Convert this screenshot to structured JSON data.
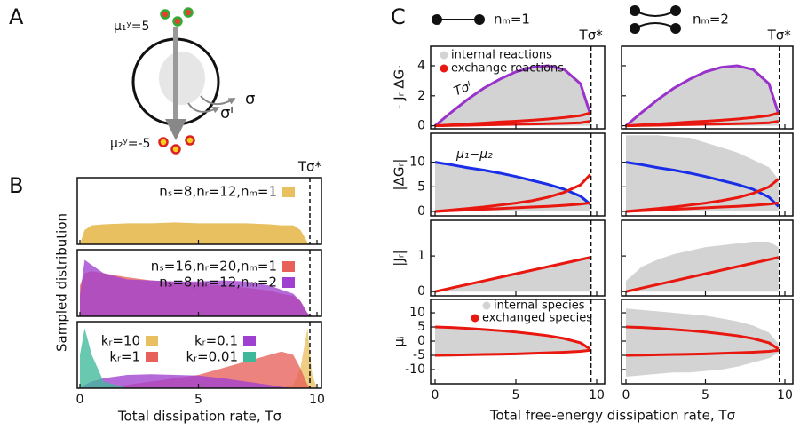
{
  "labels": [
    "A",
    "B",
    "C"
  ],
  "diagram": {
    "top": "μ₁ʸ=5",
    "bottom": "μ₂ʸ=-5",
    "sigma": "σ",
    "sigma_i": "σᴵ"
  },
  "panel_b": {
    "ylabel": "Sampled distribution",
    "xlabel": "Total dissipation rate, Tσ"
  },
  "panel_c": {
    "xlabel": "Total free-energy dissipation rate, Tσ",
    "headers": [
      "nₘ=1",
      "nₘ=2"
    ]
  },
  "chart_data": [
    {
      "type": "area",
      "x": [
        0,
        0.2,
        0.5,
        1,
        2,
        3,
        4,
        5,
        6,
        7,
        8,
        8.5,
        9,
        9.3,
        9.6,
        9.8,
        10
      ],
      "xlim": [
        0,
        10
      ],
      "ylim": [
        0,
        0.7
      ],
      "vline": 9.7,
      "vline_label": "Tσ*",
      "series": [
        {
          "name": "nₛ=8,nᵣ=12,nₘ=1",
          "color": "#e8c060",
          "values": [
            0,
            0.15,
            0.2,
            0.21,
            0.22,
            0.22,
            0.23,
            0.22,
            0.22,
            0.22,
            0.21,
            0.2,
            0.2,
            0.15,
            0.02,
            0,
            0
          ]
        }
      ]
    },
    {
      "type": "area",
      "x": [
        0,
        0.2,
        0.5,
        1,
        2,
        3,
        4,
        5,
        6,
        7,
        8,
        8.5,
        9,
        9.3,
        9.6,
        9.8,
        10
      ],
      "xlim": [
        0,
        10
      ],
      "ylim": [
        0,
        0.65
      ],
      "vline": 9.7,
      "series": [
        {
          "name": "nₛ=16,nᵣ=20,nₘ=1",
          "color": "#e8605a",
          "values": [
            0.3,
            0.42,
            0.44,
            0.42,
            0.38,
            0.35,
            0.33,
            0.32,
            0.3,
            0.28,
            0.25,
            0.22,
            0.2,
            0.15,
            0.03,
            0,
            0
          ]
        },
        {
          "name": "nₛ=8,nᵣ=12,nₘ=2",
          "color": "#a040d0",
          "values": [
            0.2,
            0.55,
            0.5,
            0.42,
            0.36,
            0.35,
            0.34,
            0.34,
            0.35,
            0.34,
            0.3,
            0.26,
            0.22,
            0.15,
            0.03,
            0,
            0
          ]
        }
      ]
    },
    {
      "type": "area",
      "x": [
        0,
        0.2,
        0.5,
        1,
        2,
        3,
        4,
        5,
        6,
        7,
        8,
        8.5,
        9,
        9.3,
        9.6,
        9.8,
        10
      ],
      "xlim": [
        0,
        10
      ],
      "ylim": [
        0,
        1
      ],
      "xticks": [
        0,
        5,
        10
      ],
      "vline": 9.7,
      "series": [
        {
          "name": "kᵣ=10",
          "color": "#e8c060",
          "values": [
            0,
            0,
            0,
            0,
            0,
            0,
            0,
            0,
            0,
            0,
            0,
            0,
            0.05,
            0.3,
            0.9,
            0.2,
            0
          ]
        },
        {
          "name": "kᵣ=1",
          "color": "#e8605a",
          "values": [
            0,
            0,
            0,
            0.02,
            0.05,
            0.1,
            0.15,
            0.2,
            0.3,
            0.4,
            0.5,
            0.55,
            0.5,
            0.3,
            0.05,
            0,
            0
          ]
        },
        {
          "name": "kᵣ=0.1",
          "color": "#a040d0",
          "values": [
            0,
            0.05,
            0.1,
            0.15,
            0.2,
            0.21,
            0.2,
            0.19,
            0.15,
            0.1,
            0.05,
            0.02,
            0,
            0,
            0,
            0,
            0
          ]
        },
        {
          "name": "kᵣ=0.01",
          "color": "#3fb89a",
          "values": [
            0.5,
            0.9,
            0.5,
            0.1,
            0,
            0,
            0,
            0,
            0,
            0,
            0,
            0,
            0,
            0,
            0,
            0,
            0
          ]
        }
      ]
    },
    {
      "type": "line",
      "x": [
        0,
        1,
        2,
        3,
        4,
        5,
        6,
        7,
        8,
        9,
        9.6
      ],
      "xlim": [
        0,
        10
      ],
      "ylim": [
        -0.2,
        5.3
      ],
      "yticks": [
        0,
        2,
        4
      ],
      "ylabel": "- Jᵣ ΔGᵣ",
      "vline": 9.65,
      "vline_label": "Tσ*",
      "annotation": {
        "text": "Tσᴵ",
        "color": "#9933cc"
      },
      "series": [
        {
          "name": "internal reactions",
          "kind": "band",
          "color": "#d3d3d3",
          "values": [
            0,
            0.85,
            1.7,
            2.45,
            3.05,
            3.55,
            3.85,
            3.95,
            3.7,
            2.75,
            0.75
          ]
        },
        {
          "color": "#9933cc",
          "values": [
            0,
            0.9,
            1.75,
            2.5,
            3.1,
            3.6,
            3.9,
            4.0,
            3.75,
            2.8,
            0.8
          ]
        },
        {
          "name": "exchange reactions",
          "color": "#e8170f",
          "values": [
            0,
            0.06,
            0.12,
            0.18,
            0.25,
            0.3,
            0.37,
            0.45,
            0.55,
            0.68,
            0.85
          ]
        },
        {
          "color": "#e8170f",
          "values": [
            0,
            0.02,
            0.04,
            0.06,
            0.08,
            0.1,
            0.12,
            0.14,
            0.16,
            0.2,
            0.3
          ]
        }
      ]
    },
    {
      "type": "line",
      "x": [
        0,
        1,
        2,
        3,
        4,
        5,
        6,
        7,
        8,
        9,
        9.6
      ],
      "xlim": [
        0,
        10
      ],
      "ylim": [
        -0.2,
        5.3
      ],
      "vline": 9.65,
      "vline_label": "Tσ*",
      "series": [
        {
          "kind": "band",
          "color": "#d3d3d3",
          "values": [
            0,
            0.9,
            1.75,
            2.5,
            3.1,
            3.6,
            3.9,
            4.0,
            3.75,
            2.8,
            0.8
          ]
        },
        {
          "color": "#9933cc",
          "values": [
            0,
            0.9,
            1.75,
            2.5,
            3.1,
            3.6,
            3.9,
            4.0,
            3.75,
            2.8,
            0.8
          ]
        },
        {
          "color": "#e8170f",
          "values": [
            0,
            0.06,
            0.12,
            0.18,
            0.25,
            0.3,
            0.37,
            0.45,
            0.55,
            0.68,
            0.85
          ]
        },
        {
          "color": "#e8170f",
          "values": [
            0,
            0.02,
            0.04,
            0.06,
            0.08,
            0.1,
            0.12,
            0.14,
            0.16,
            0.2,
            0.3
          ]
        }
      ]
    },
    {
      "type": "line",
      "x": [
        0,
        1,
        2,
        3,
        4,
        5,
        6,
        7,
        8,
        9,
        9.6
      ],
      "xlim": [
        0,
        10
      ],
      "ylim": [
        -0.9,
        15.9
      ],
      "yticks": [
        0,
        5,
        10
      ],
      "ylabel": "|ΔGᵣ|",
      "vline": 9.65,
      "annotation": {
        "text": "μ₁−μ₂",
        "color": "#1a2ee8"
      },
      "series": [
        {
          "kind": "band",
          "color": "#d3d3d3",
          "values": [
            9.9,
            9.4,
            8.8,
            8.3,
            7.7,
            7,
            6.2,
            5.4,
            4.4,
            3,
            1.4
          ]
        },
        {
          "color": "#1a2ee8",
          "values": [
            10,
            9.5,
            8.9,
            8.4,
            7.8,
            7.1,
            6.3,
            5.5,
            4.5,
            3.1,
            1.5
          ]
        },
        {
          "color": "#e8170f",
          "values": [
            0,
            0.3,
            0.6,
            0.9,
            1.3,
            1.7,
            2.2,
            2.9,
            3.9,
            5.4,
            7.5
          ]
        },
        {
          "color": "#e8170f",
          "values": [
            0,
            0.15,
            0.3,
            0.45,
            0.6,
            0.75,
            0.9,
            1.05,
            1.25,
            1.5,
            1.75
          ]
        }
      ]
    },
    {
      "type": "line",
      "x": [
        0,
        1,
        2,
        3,
        4,
        5,
        6,
        7,
        8,
        9,
        9.6
      ],
      "xlim": [
        0,
        10
      ],
      "ylim": [
        -0.9,
        15.9
      ],
      "vline": 9.65,
      "series": [
        {
          "kind": "band",
          "color": "#d3d3d3",
          "values": [
            15.5,
            15.5,
            15.5,
            15.2,
            15,
            14,
            13,
            12,
            10.5,
            9,
            6.5
          ]
        },
        {
          "color": "#1a2ee8",
          "values": [
            10,
            9.5,
            8.9,
            8.4,
            7.8,
            7.1,
            6.3,
            5.5,
            4.5,
            2.9,
            1.0
          ]
        },
        {
          "color": "#e8170f",
          "values": [
            0,
            0.3,
            0.6,
            0.9,
            1.3,
            1.7,
            2.2,
            2.8,
            3.7,
            5.0,
            6.6
          ]
        },
        {
          "color": "#e8170f",
          "values": [
            0,
            0.15,
            0.3,
            0.45,
            0.6,
            0.75,
            0.9,
            1.05,
            1.25,
            1.5,
            1.75
          ]
        }
      ]
    },
    {
      "type": "line",
      "x": [
        0,
        1,
        2,
        3,
        4,
        5,
        6,
        7,
        8,
        9,
        9.6
      ],
      "xlim": [
        0,
        10
      ],
      "ylim": [
        -0.12,
        2.0
      ],
      "yticks": [
        0,
        1
      ],
      "ylabel": "|Jᵣ|",
      "vline": 9.65,
      "series": [
        {
          "kind": "band",
          "color": "#d3d3d3",
          "values": [
            0,
            0.1,
            0.2,
            0.3,
            0.4,
            0.5,
            0.6,
            0.7,
            0.8,
            0.9,
            0.96
          ]
        },
        {
          "color": "#e8170f",
          "values": [
            0,
            0.1,
            0.2,
            0.3,
            0.4,
            0.5,
            0.6,
            0.7,
            0.8,
            0.9,
            0.96
          ]
        }
      ]
    },
    {
      "type": "line",
      "x": [
        0,
        1,
        2,
        3,
        4,
        5,
        6,
        7,
        8,
        9,
        9.6
      ],
      "xlim": [
        0,
        10
      ],
      "ylim": [
        -0.12,
        2.0
      ],
      "vline": 9.65,
      "series": [
        {
          "kind": "band",
          "color": "#d3d3d3",
          "values": [
            0.3,
            0.7,
            0.9,
            1.05,
            1.15,
            1.25,
            1.3,
            1.35,
            1.4,
            1.4,
            1.25
          ]
        },
        {
          "color": "#e8170f",
          "values": [
            0,
            0.1,
            0.2,
            0.3,
            0.4,
            0.5,
            0.6,
            0.7,
            0.8,
            0.9,
            0.96
          ]
        }
      ]
    },
    {
      "type": "line",
      "x": [
        0,
        1,
        2,
        3,
        4,
        5,
        6,
        7,
        8,
        9,
        9.6
      ],
      "xlim": [
        0,
        10
      ],
      "ylim": [
        -15,
        14.7
      ],
      "yticks": [
        -10,
        -5,
        0,
        5,
        10
      ],
      "xticks": [
        0,
        5,
        10
      ],
      "ylabel": "μᵢ",
      "vline": 9.65,
      "series": [
        {
          "name": "internal species",
          "kind": "band",
          "color": "#d3d3d3",
          "values": [
            5,
            4.8,
            4.5,
            4.1,
            3.7,
            3.2,
            2.6,
            1.9,
            0.9,
            -0.6,
            -2.8
          ],
          "lower": [
            -5,
            -4.9,
            -4.8,
            -4.7,
            -4.6,
            -4.5,
            -4.3,
            -4.1,
            -3.9,
            -3.6,
            -3.2
          ]
        },
        {
          "name": "exchanged species",
          "color": "#e8170f",
          "values": [
            5,
            4.8,
            4.5,
            4.1,
            3.7,
            3.2,
            2.6,
            1.9,
            0.9,
            -0.6,
            -2.8
          ]
        },
        {
          "color": "#e8170f",
          "values": [
            -5,
            -4.9,
            -4.8,
            -4.7,
            -4.6,
            -4.5,
            -4.3,
            -4.1,
            -3.9,
            -3.6,
            -3.2
          ]
        }
      ]
    },
    {
      "type": "line",
      "x": [
        0,
        1,
        2,
        3,
        4,
        5,
        6,
        7,
        8,
        9,
        9.6
      ],
      "xlim": [
        0,
        10
      ],
      "ylim": [
        -15,
        14.7
      ],
      "xticks": [
        0,
        5,
        10
      ],
      "vline": 9.65,
      "series": [
        {
          "kind": "band",
          "color": "#d3d3d3",
          "values": [
            11.5,
            11,
            10.5,
            10,
            9.5,
            9,
            8,
            7,
            5.5,
            3,
            -1
          ],
          "lower": [
            -12.5,
            -12,
            -11.5,
            -11,
            -11,
            -10.5,
            -10,
            -9,
            -7.5,
            -6,
            -4
          ]
        },
        {
          "color": "#e8170f",
          "values": [
            5,
            4.8,
            4.5,
            4.1,
            3.7,
            3.2,
            2.6,
            1.9,
            0.9,
            -0.6,
            -2.8
          ]
        },
        {
          "color": "#e8170f",
          "values": [
            -5,
            -4.9,
            -4.8,
            -4.7,
            -4.6,
            -4.5,
            -4.3,
            -4.1,
            -3.9,
            -3.6,
            -3.2
          ]
        }
      ]
    }
  ]
}
